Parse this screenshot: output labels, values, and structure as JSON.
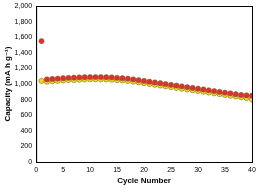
{
  "chart_data": {
    "type": "scatter",
    "x_label": "Cycle Number",
    "y_label": "Capacity (mA h g⁻¹)",
    "x": [
      1,
      2,
      3,
      4,
      5,
      6,
      7,
      8,
      9,
      10,
      11,
      12,
      13,
      14,
      15,
      16,
      17,
      18,
      19,
      20,
      21,
      22,
      23,
      24,
      25,
      26,
      27,
      28,
      29,
      30,
      31,
      32,
      33,
      34,
      35,
      36,
      37,
      38,
      39,
      40
    ],
    "series": [
      {
        "color": "#e0302e",
        "marker": "circle",
        "values": [
          1550,
          1060,
          1065,
          1070,
          1075,
          1080,
          1082,
          1085,
          1088,
          1090,
          1090,
          1090,
          1088,
          1085,
          1080,
          1075,
          1070,
          1060,
          1050,
          1040,
          1030,
          1020,
          1010,
          1000,
          990,
          980,
          970,
          960,
          950,
          940,
          930,
          920,
          910,
          900,
          890,
          880,
          870,
          860,
          855,
          850
        ]
      },
      {
        "color": "#e8dc2a",
        "marker": "circle",
        "values": [
          1040,
          1030,
          1035,
          1040,
          1045,
          1050,
          1052,
          1055,
          1058,
          1060,
          1060,
          1060,
          1058,
          1055,
          1050,
          1045,
          1040,
          1030,
          1020,
          1010,
          1000,
          990,
          980,
          970,
          960,
          950,
          940,
          930,
          920,
          910,
          900,
          890,
          880,
          870,
          860,
          850,
          840,
          830,
          820,
          800
        ]
      }
    ],
    "xlim": [
      0,
      40
    ],
    "xticks": [
      0,
      5,
      10,
      15,
      20,
      25,
      30,
      35,
      40
    ],
    "ylim": [
      0,
      2000
    ],
    "yticks": [
      0,
      200,
      400,
      600,
      800,
      1000,
      1200,
      1400,
      1600,
      1800,
      2000
    ],
    "grid": false
  }
}
